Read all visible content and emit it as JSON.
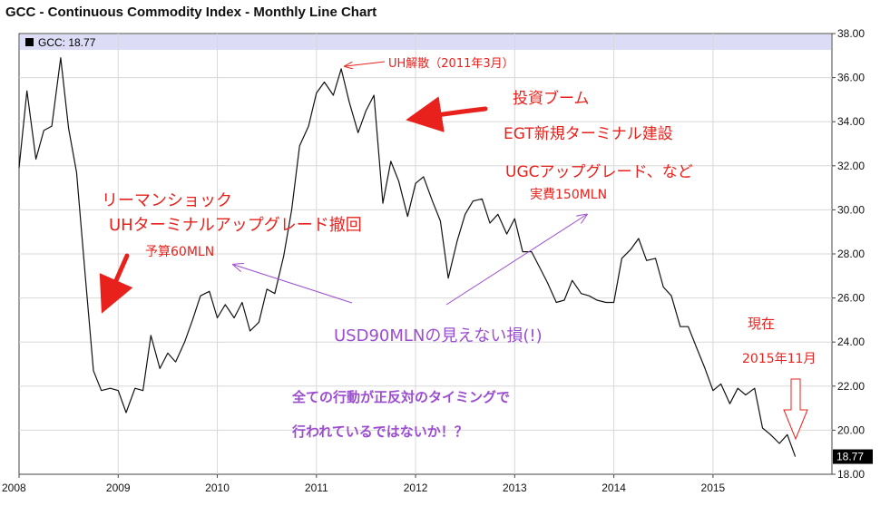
{
  "chart_data": {
    "type": "line",
    "title": "GCC - Continuous Commodity Index - Monthly Line Chart",
    "legend_label": "GCC: 18.77",
    "last_value_label": "18.77",
    "x_tick_labels": [
      "2008",
      "2009",
      "2010",
      "2011",
      "2012",
      "2013",
      "2014",
      "2015"
    ],
    "y_tick_labels": [
      "18.00",
      "20.00",
      "22.00",
      "24.00",
      "26.00",
      "28.00",
      "30.00",
      "32.00",
      "34.00",
      "36.00",
      "38.00"
    ],
    "ylim": [
      18,
      38
    ],
    "xlim": [
      2008.0,
      2016.2
    ],
    "x": [
      2008.0,
      2008.08,
      2008.17,
      2008.25,
      2008.33,
      2008.42,
      2008.5,
      2008.58,
      2008.67,
      2008.75,
      2008.83,
      2008.92,
      2009.0,
      2009.08,
      2009.17,
      2009.25,
      2009.33,
      2009.42,
      2009.5,
      2009.58,
      2009.67,
      2009.75,
      2009.83,
      2009.92,
      2010.0,
      2010.08,
      2010.17,
      2010.25,
      2010.33,
      2010.42,
      2010.5,
      2010.58,
      2010.67,
      2010.75,
      2010.83,
      2010.92,
      2011.0,
      2011.08,
      2011.17,
      2011.25,
      2011.33,
      2011.42,
      2011.5,
      2011.58,
      2011.67,
      2011.75,
      2011.83,
      2011.92,
      2012.0,
      2012.08,
      2012.17,
      2012.25,
      2012.33,
      2012.42,
      2012.5,
      2012.58,
      2012.67,
      2012.75,
      2012.83,
      2012.92,
      2013.0,
      2013.08,
      2013.17,
      2013.25,
      2013.33,
      2013.42,
      2013.5,
      2013.58,
      2013.67,
      2013.75,
      2013.83,
      2013.92,
      2014.0,
      2014.08,
      2014.17,
      2014.25,
      2014.33,
      2014.42,
      2014.5,
      2014.58,
      2014.67,
      2014.75,
      2014.83,
      2014.92,
      2015.0,
      2015.08,
      2015.17,
      2015.25,
      2015.33,
      2015.42,
      2015.5,
      2015.58,
      2015.67,
      2015.75,
      2015.83
    ],
    "series": [
      {
        "values": [
          31.9,
          35.4,
          32.3,
          33.6,
          33.8,
          36.9,
          33.7,
          31.7,
          26.9,
          22.7,
          21.8,
          21.9,
          21.8,
          20.8,
          21.9,
          21.8,
          24.3,
          22.8,
          23.5,
          23.1,
          24.0,
          25.0,
          26.1,
          26.3,
          25.1,
          25.7,
          25.1,
          25.8,
          24.5,
          24.9,
          26.4,
          26.2,
          27.9,
          30.0,
          32.9,
          33.8,
          35.3,
          35.8,
          35.2,
          36.4,
          34.9,
          33.5,
          34.5,
          35.2,
          30.3,
          32.2,
          31.3,
          29.7,
          31.2,
          31.5,
          30.4,
          29.5,
          26.9,
          28.6,
          29.8,
          30.4,
          30.5,
          29.4,
          29.8,
          28.9,
          29.6,
          28.1,
          28.1,
          27.4,
          26.7,
          25.8,
          25.9,
          26.8,
          26.2,
          26.1,
          25.9,
          25.8,
          25.8,
          27.8,
          28.2,
          28.7,
          27.7,
          27.8,
          26.5,
          26.1,
          24.7,
          24.7,
          23.8,
          22.8,
          21.8,
          22.1,
          21.2,
          21.9,
          21.6,
          21.9,
          20.1,
          19.8,
          19.4,
          19.8,
          18.8
        ]
      }
    ],
    "grid": true,
    "y_axis_side": "right"
  },
  "annotations": {
    "uh_dissolution": "UH解散（2011年3月）",
    "boom_line1": "投資ブーム",
    "boom_line2": "EGT新規ターミナル建設",
    "boom_line3": "UGCアップグレード、など",
    "actual_cost": "実費150MLN",
    "lehman_line1": "リーマンショック",
    "lehman_line2": "UHターミナルアップグレード撤回",
    "budget": "予算60MLN",
    "loss": "USD90MLNの見えない損(!)",
    "timing_line1": "全ての行動が正反対のタイミングで",
    "timing_line2": "行われているではないか！？",
    "current_line1": "現在",
    "current_line2": "2015年11月"
  }
}
